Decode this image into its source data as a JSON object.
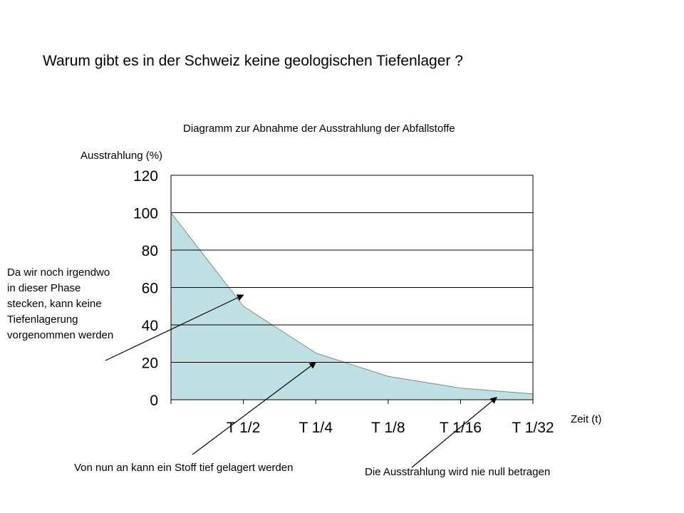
{
  "slide": {
    "title": "Warum gibt es in der Schweiz keine geologischen Tiefenlager ?"
  },
  "chart_data": {
    "type": "area",
    "title": "Diagramm zur Abnahme der Ausstrahlung der Abfallstoffe",
    "xlabel": "Zeit (t)",
    "ylabel": "Ausstrahlung (%)",
    "categories": [
      "T 1/2",
      "T 1/4",
      "T 1/8",
      "T 1/16",
      "T 1/32"
    ],
    "x": [
      0,
      1,
      2,
      3,
      4,
      5
    ],
    "values": [
      100,
      50,
      25,
      12.5,
      6.25,
      3.125
    ],
    "ylim": [
      0,
      120
    ],
    "yticks": [
      0,
      20,
      40,
      60,
      80,
      100,
      120
    ],
    "grid": true,
    "fill_color": "#bfe0e3",
    "line_color": "#000000"
  },
  "annotations": [
    {
      "text": "Da wir noch irgendwo in dieser Phase stecken, kann keine Tiefenlagerung vorgenommen werden",
      "points_to": {
        "x": 1,
        "y": 56
      }
    },
    {
      "text": "Von nun an kann ein Stoff tief gelagert werden",
      "points_to": {
        "x": 2,
        "y": 20
      }
    },
    {
      "text": "Die Ausstrahlung wird nie null betragen",
      "points_to": {
        "x": 4.5,
        "y": 1.3
      }
    }
  ]
}
